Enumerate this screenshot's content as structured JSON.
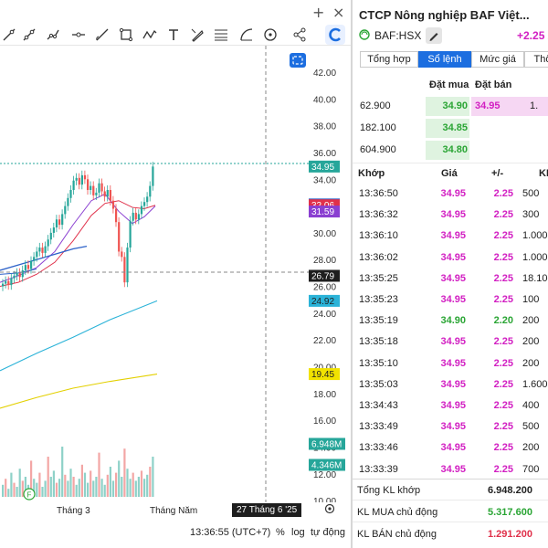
{
  "window": {
    "add_icon": "plus-icon",
    "close_icon": "close-icon"
  },
  "toolbar": {
    "tools": [
      "line-tool-icon",
      "ray-tool-icon",
      "trendline-tool-icon",
      "horizontal-line-icon",
      "brush-icon",
      "rectangle-icon",
      "path-icon",
      "text-icon",
      "measure-icon",
      "fibonacci-icon",
      "arc-icon",
      "circle-icon",
      "share-icon"
    ],
    "active_tool": "crosshair-icon"
  },
  "chart": {
    "price_labels": [
      "42.00",
      "40.00",
      "38.00",
      "36.00",
      "34.00",
      "32.00",
      "30.00",
      "28.00",
      "26.00",
      "24.00",
      "22.00",
      "20.00",
      "18.00",
      "16.00",
      "14.00",
      "12.00",
      "10.00"
    ],
    "tags": {
      "last": "34.95",
      "ma_a": "32.12",
      "ma_b": "32.06",
      "ma_c": "31.59",
      "cursor": "26.79",
      "ma_d": "24.92",
      "ma_e": "19.45",
      "vol_a": "6.948M",
      "vol_b": "4.346M"
    },
    "x_labels": {
      "month3": "Tháng 3",
      "may": "Tháng Năm",
      "cursor_date": "27 Tháng 6 '25"
    },
    "event_marker": "F",
    "colors": {
      "up": "#26a69a",
      "down": "#ef5350",
      "ma_blue": "#2d62c9",
      "ma_red": "#e0304a",
      "ma_cyan": "#2bb3d8",
      "ma_yellow": "#e3d000",
      "vol_green": "#8ed1c8",
      "vol_red": "#f3a6a5"
    }
  },
  "status": {
    "time": "13:36:55 (UTC+7)",
    "percent": "%",
    "log": "log",
    "auto": "tự động"
  },
  "panel": {
    "title": "CTCP Nông nghiệp BAF Việt...",
    "ticker": "BAF:HSX",
    "change": "+2.25 / +",
    "tabs": [
      "Tổng hợp",
      "Sổ lệnh",
      "Mức giá",
      "Thố"
    ],
    "active_tab": "Sổ lệnh"
  },
  "orderbook": {
    "headers": {
      "buy": "Đặt mua",
      "sell": "Đặt bán"
    },
    "rows": [
      {
        "vol": "62.900",
        "bid": "34.90",
        "ask": "34.95",
        "ask_vol": "1."
      },
      {
        "vol": "182.100",
        "bid": "34.85",
        "ask": "",
        "ask_vol": ""
      },
      {
        "vol": "604.900",
        "bid": "34.80",
        "ask": "",
        "ask_vol": ""
      }
    ]
  },
  "trades": {
    "headers": {
      "time": "Khớp",
      "price": "Giá",
      "change": "+/-",
      "vol": "KI"
    },
    "rows": [
      {
        "time": "13:36:50",
        "price": "34.95",
        "change": "2.25",
        "vol": "500"
      },
      {
        "time": "13:36:32",
        "price": "34.95",
        "change": "2.25",
        "vol": "300"
      },
      {
        "time": "13:36:10",
        "price": "34.95",
        "change": "2.25",
        "vol": "1.000"
      },
      {
        "time": "13:36:02",
        "price": "34.95",
        "change": "2.25",
        "vol": "1.000"
      },
      {
        "time": "13:35:25",
        "price": "34.95",
        "change": "2.25",
        "vol": "18.100"
      },
      {
        "time": "13:35:23",
        "price": "34.95",
        "change": "2.25",
        "vol": "100"
      },
      {
        "time": "13:35:19",
        "price": "34.90",
        "change": "2.20",
        "vol": "200"
      },
      {
        "time": "13:35:18",
        "price": "34.95",
        "change": "2.25",
        "vol": "200"
      },
      {
        "time": "13:35:10",
        "price": "34.95",
        "change": "2.25",
        "vol": "200"
      },
      {
        "time": "13:35:03",
        "price": "34.95",
        "change": "2.25",
        "vol": "1.600"
      },
      {
        "time": "13:34:43",
        "price": "34.95",
        "change": "2.25",
        "vol": "400"
      },
      {
        "time": "13:33:49",
        "price": "34.95",
        "change": "2.25",
        "vol": "500"
      },
      {
        "time": "13:33:46",
        "price": "34.95",
        "change": "2.25",
        "vol": "200"
      },
      {
        "time": "13:33:39",
        "price": "34.95",
        "change": "2.25",
        "vol": "700"
      }
    ]
  },
  "summary": {
    "total_label": "Tổng KL khớp",
    "total_value": "6.948.200",
    "buy_label": "KL MUA chủ động",
    "buy_value": "5.317.600",
    "sell_label": "KL BÁN chủ động",
    "sell_value": "1.291.200"
  }
}
